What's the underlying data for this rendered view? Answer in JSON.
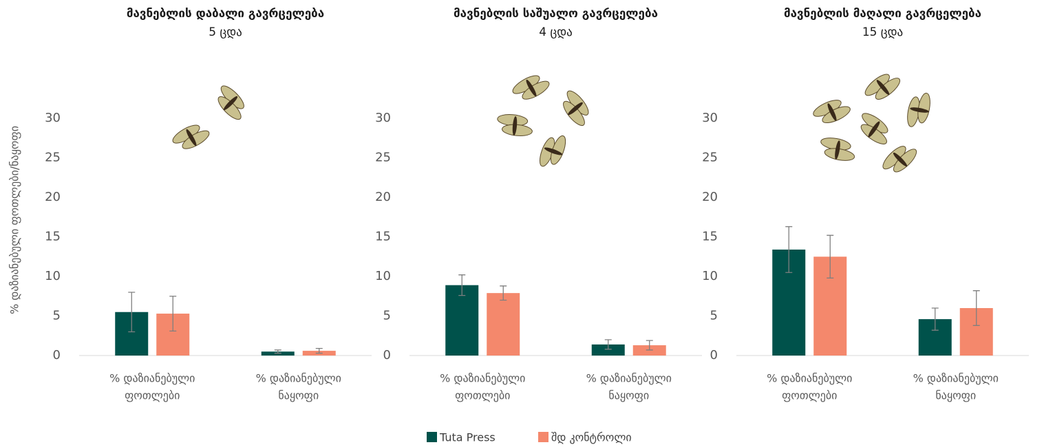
{
  "chart_data": [
    {
      "type": "bar",
      "title": "მავნებლის დაბალი გავრცელება",
      "subtitle": "5 ცდა",
      "y_label": "% დაზიანებული ფოთლები/ნაყოფი",
      "categories": [
        [
          "% დაზიანებული",
          "ფოთლები"
        ],
        [
          "% დაზიანებული",
          "ნაყოფი"
        ]
      ],
      "series": [
        {
          "name": "Tuta Press",
          "color": "#00524b",
          "values": [
            5.5,
            0.5
          ],
          "errors": [
            2.5,
            0.2
          ]
        },
        {
          "name": "შდ კონტროლი",
          "color": "#f4886c",
          "values": [
            5.3,
            0.6
          ],
          "errors": [
            2.2,
            0.3
          ]
        }
      ],
      "ylim": [
        0,
        30
      ],
      "yticks": [
        0,
        5,
        10,
        15,
        20,
        25,
        30
      ]
    },
    {
      "type": "bar",
      "title": "მავნებლის საშუალო გავრცელება",
      "subtitle": "4 ცდა",
      "categories": [
        [
          "% დაზიანებული",
          "ფოთლები"
        ],
        [
          "% დაზიანებული",
          "ნაყოფი"
        ]
      ],
      "series": [
        {
          "name": "Tuta Press",
          "color": "#00524b",
          "values": [
            8.9,
            1.4
          ],
          "errors": [
            1.3,
            0.6
          ]
        },
        {
          "name": "შდ კონტროლი",
          "color": "#f4886c",
          "values": [
            7.9,
            1.3
          ],
          "errors": [
            0.9,
            0.6
          ]
        }
      ],
      "ylim": [
        0,
        30
      ],
      "yticks": [
        0,
        5,
        10,
        15,
        20,
        25,
        30
      ]
    },
    {
      "type": "bar",
      "title": "მავნებლის მაღალი გავრცელება",
      "subtitle": "15 ცდა",
      "categories": [
        [
          "% დაზიანებული",
          "ფოთლები"
        ],
        [
          "% დაზიანებული",
          "ნაყოფი"
        ]
      ],
      "series": [
        {
          "name": "Tuta Press",
          "color": "#00524b",
          "values": [
            13.4,
            4.6
          ],
          "errors": [
            2.9,
            1.4
          ]
        },
        {
          "name": "შდ კონტროლი",
          "color": "#f4886c",
          "values": [
            12.5,
            6.0
          ],
          "errors": [
            2.7,
            2.2
          ]
        }
      ],
      "ylim": [
        0,
        30
      ],
      "yticks": [
        0,
        5,
        10,
        15,
        20,
        25,
        30
      ]
    }
  ]
}
